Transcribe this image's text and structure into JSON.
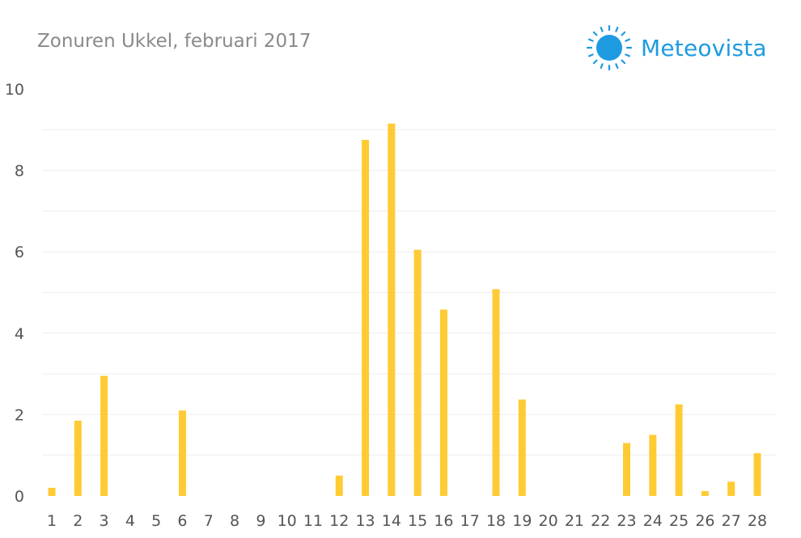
{
  "title": "Zonuren Ukkel, februari 2017",
  "brand": {
    "name": "Meteovista",
    "color": "#1e9be0",
    "icon": "sun-icon"
  },
  "chart_data": {
    "type": "bar",
    "title": "Zonuren Ukkel, februari 2017",
    "xlabel": "",
    "ylabel": "",
    "categories": [
      "1",
      "2",
      "3",
      "4",
      "5",
      "6",
      "7",
      "8",
      "9",
      "10",
      "11",
      "12",
      "13",
      "14",
      "15",
      "16",
      "17",
      "18",
      "19",
      "20",
      "21",
      "22",
      "23",
      "24",
      "25",
      "26",
      "27",
      "28"
    ],
    "values": [
      0.2,
      1.85,
      2.95,
      0,
      0,
      2.1,
      0,
      0,
      0,
      0,
      0,
      0.5,
      8.75,
      9.15,
      6.05,
      4.58,
      0,
      5.08,
      2.37,
      0,
      0,
      0,
      1.3,
      1.5,
      2.25,
      0.12,
      0.35,
      1.05
    ],
    "ylim": [
      0,
      10
    ],
    "yticks": [
      "0",
      "2",
      "4",
      "6",
      "8",
      "10"
    ],
    "grid": true,
    "bar_color": "#ffcb34",
    "grid_color": "#eeeeee"
  }
}
